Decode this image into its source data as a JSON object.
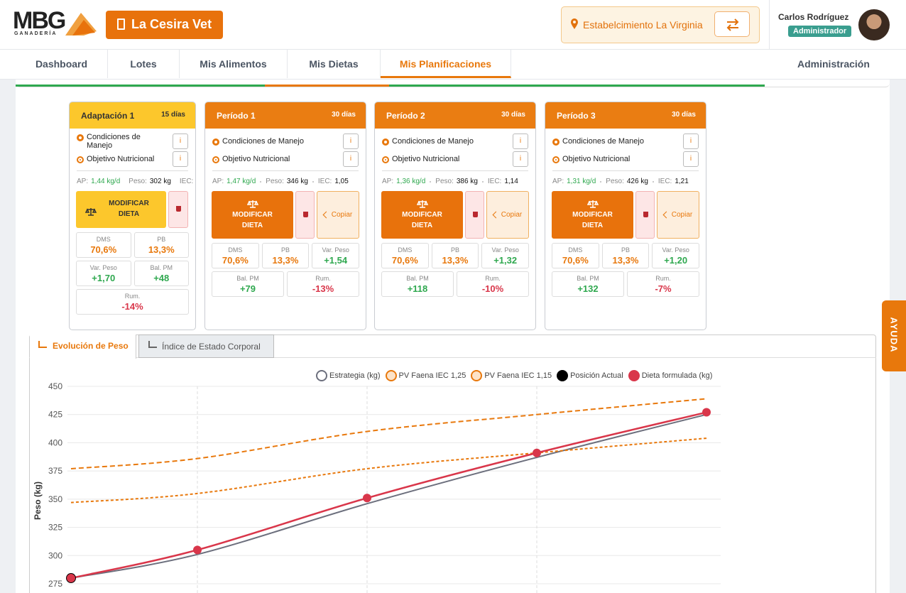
{
  "header": {
    "logo": "MBG",
    "logo_sub": "GANADERÍA",
    "vet": "La Cesira Vet",
    "establishment": "Estabelcimiento La Virginia",
    "user": "Carlos Rodríguez",
    "role": "Administrador"
  },
  "nav": [
    "Dashboard",
    "Lotes",
    "Mis Alimentos",
    "Mis Dietas",
    "Mis Planificaciones"
  ],
  "nav_active": 4,
  "admin": "Administración",
  "periods": [
    {
      "title": "Adaptación 1",
      "days": "15 días",
      "color": "#fcc72c",
      "conditions": "Condiciones de Manejo",
      "objective": "Objetivo Nutricional",
      "info": "i",
      "ap_label": "AP:",
      "ap": "1,44 kg/d",
      "peso_label": "Peso:",
      "peso": "302 kg",
      "iec_label": "IEC:",
      "modify": "MODIFICAR DIETA",
      "metrics": [
        {
          "label": "DMS",
          "value": "70,6%"
        },
        {
          "label": "PB",
          "value": "13,3%"
        },
        {
          "label": "Var. Peso",
          "value": "+1,70"
        },
        {
          "label": "Bal. PM",
          "value": "+48"
        },
        {
          "label": "Rum.",
          "value": "-14%"
        }
      ]
    },
    {
      "title": "Período 1",
      "days": "30 días",
      "color": "#ea7d12",
      "conditions": "Condiciones de Manejo",
      "objective": "Objetivo Nutricional",
      "info": "i",
      "ap_label": "AP:",
      "ap": "1,47 kg/d",
      "peso_label": "Peso:",
      "peso": "346 kg",
      "iec_label": "IEC:",
      "iec": "1,05",
      "modify": "MODIFICAR DIETA",
      "copy": "Copiar",
      "metrics": [
        {
          "label": "DMS",
          "value": "70,6%"
        },
        {
          "label": "PB",
          "value": "13,3%"
        },
        {
          "label": "Var. Peso",
          "value": "+1,54"
        },
        {
          "label": "Bal. PM",
          "value": "+79"
        },
        {
          "label": "Rum.",
          "value": "-13%"
        }
      ]
    },
    {
      "title": "Período 2",
      "days": "30 días",
      "color": "#ea7d12",
      "conditions": "Condiciones de Manejo",
      "objective": "Objetivo Nutricional",
      "info": "i",
      "ap_label": "AP:",
      "ap": "1,36 kg/d",
      "peso_label": "Peso:",
      "peso": "386 kg",
      "iec_label": "IEC:",
      "iec": "1,14",
      "modify": "MODIFICAR DIETA",
      "copy": "Copiar",
      "metrics": [
        {
          "label": "DMS",
          "value": "70,6%"
        },
        {
          "label": "PB",
          "value": "13,3%"
        },
        {
          "label": "Var. Peso",
          "value": "+1,32"
        },
        {
          "label": "Bal. PM",
          "value": "+118"
        },
        {
          "label": "Rum.",
          "value": "-10%"
        }
      ]
    },
    {
      "title": "Período 3",
      "days": "30 días",
      "color": "#ea7d12",
      "conditions": "Condiciones de Manejo",
      "objective": "Objetivo Nutricional",
      "info": "i",
      "ap_label": "AP:",
      "ap": "1,31 kg/d",
      "peso_label": "Peso:",
      "peso": "426 kg",
      "iec_label": "IEC:",
      "iec": "1,21",
      "modify": "MODIFICAR DIETA",
      "copy": "Copiar",
      "metrics": [
        {
          "label": "DMS",
          "value": "70,6%"
        },
        {
          "label": "PB",
          "value": "13,3%"
        },
        {
          "label": "Var. Peso",
          "value": "+1,20"
        },
        {
          "label": "Bal. PM",
          "value": "+132"
        },
        {
          "label": "Rum.",
          "value": "-7%"
        }
      ]
    }
  ],
  "help": "AYUDA",
  "tabs": [
    "Evolución de Peso",
    "Índice de Estado Corporal"
  ],
  "chart": {
    "type": "line",
    "y_label": "Peso (kg)",
    "categories": [
      null,
      null,
      null,
      null,
      null
    ],
    "ylim": [
      275,
      450
    ],
    "yticks": [
      275,
      300,
      325,
      350,
      375,
      400,
      425,
      450
    ],
    "grid": true,
    "series": [
      {
        "name": "Estrategia (kg)",
        "color": "#6c6f7d",
        "fill": "#ffffff",
        "style": "solid",
        "markers": false,
        "values": [
          280,
          301,
          346,
          387,
          425
        ]
      },
      {
        "name": "PV Faena IEC 1,25",
        "color": "#e8780c",
        "fill": "#fde3c8",
        "style": "dashed",
        "markers": false,
        "values": [
          377,
          386,
          410,
          425,
          439
        ]
      },
      {
        "name": "PV Faena IEC 1,15",
        "color": "#e8780c",
        "fill": "#fde3c8",
        "style": "dotted",
        "markers": false,
        "values": [
          347,
          355,
          377,
          391,
          404
        ]
      },
      {
        "name": "Posición Actual",
        "color": "#000000",
        "fill": "#000000",
        "style": "none",
        "markers": true,
        "values": [
          280,
          null,
          null,
          null,
          null
        ]
      },
      {
        "name": "Dieta formulada (kg)",
        "color": "#d9364a",
        "fill": "#d9364a",
        "style": "solid",
        "markers": true,
        "values": [
          280,
          305,
          351,
          391,
          427
        ]
      }
    ]
  }
}
